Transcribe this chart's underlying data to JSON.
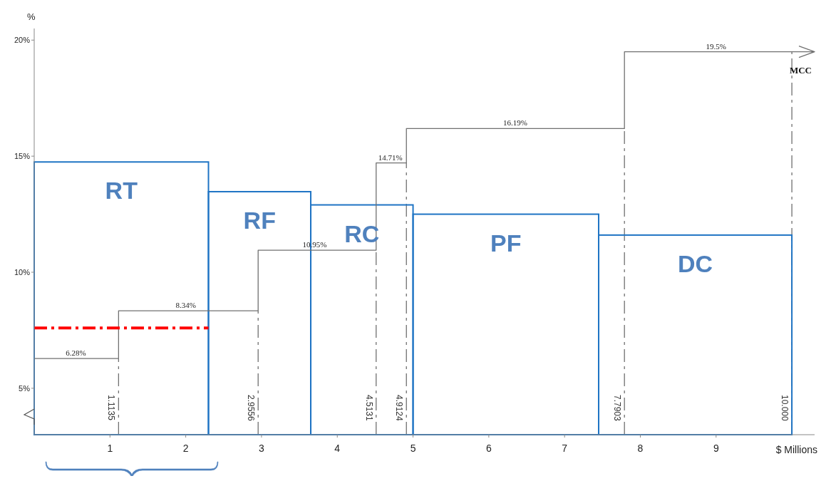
{
  "chart_data": {
    "type": "step",
    "xlabel": "$ Millions",
    "ylabel": "%",
    "xlim": [
      0,
      10.3
    ],
    "xticks": [
      1,
      2,
      3,
      4,
      5,
      6,
      7,
      8,
      9
    ],
    "ylim": [
      3,
      20.5
    ],
    "yticks": [
      {
        "value": 5,
        "label": "5%"
      },
      {
        "value": 10,
        "label": "10%"
      },
      {
        "value": 15,
        "label": "15%"
      },
      {
        "value": 20,
        "label": "20%"
      }
    ],
    "series": [
      {
        "type": "histogram",
        "color": "#1f74c4",
        "bins": [
          0,
          2.3,
          3.65,
          5.0,
          7.45,
          10.0
        ],
        "values": [
          14.75,
          13.47,
          12.9,
          12.5,
          11.6
        ]
      },
      {
        "name": "MCC",
        "color": "#707070",
        "x": [
          0,
          1.1135,
          2.9556,
          4.5131,
          4.9124,
          7.7903,
          10.3
        ],
        "values": [
          6.28,
          8.34,
          10.95,
          14.71,
          16.19,
          19.5,
          19.5
        ]
      },
      {
        "type": "line",
        "color": "#ff0000",
        "line_style": "dashed",
        "x": [
          0,
          2.3
        ],
        "values": [
          7.6,
          7.6
        ]
      }
    ],
    "ref_lines": [
      {
        "axis": "x",
        "value": 1.1135,
        "label": "1.1135",
        "line_style": "dashed"
      },
      {
        "axis": "x",
        "value": 2.9556,
        "label": "2.9556",
        "line_style": "dashed"
      },
      {
        "axis": "x",
        "value": 4.5131,
        "label": "4.5131",
        "line_style": "dashed"
      },
      {
        "axis": "x",
        "value": 4.9124,
        "label": "4.9124",
        "line_style": "dashed"
      },
      {
        "axis": "x",
        "value": 7.7903,
        "label": "7.7903",
        "line_style": "dashed"
      },
      {
        "axis": "x",
        "value": 10.0,
        "label": "10.000",
        "line_style": "dashed"
      }
    ],
    "annotations": [
      "RT",
      "RF",
      "RC",
      "PF",
      "DC",
      {
        "text": "6.28%",
        "x": 0.55,
        "y": 6.28
      },
      {
        "text": "8.34%",
        "x": 2.0,
        "y": 8.34
      },
      {
        "text": "10.95%",
        "x": 3.7,
        "y": 10.95
      },
      {
        "text": "14.71%",
        "x": 4.7,
        "y": 14.71
      },
      {
        "text": "16.19%",
        "x": 6.35,
        "y": 16.19
      },
      {
        "text": "19.5%",
        "x": 9.0,
        "y": 19.5
      }
    ],
    "grid": false,
    "legend": "top right"
  }
}
